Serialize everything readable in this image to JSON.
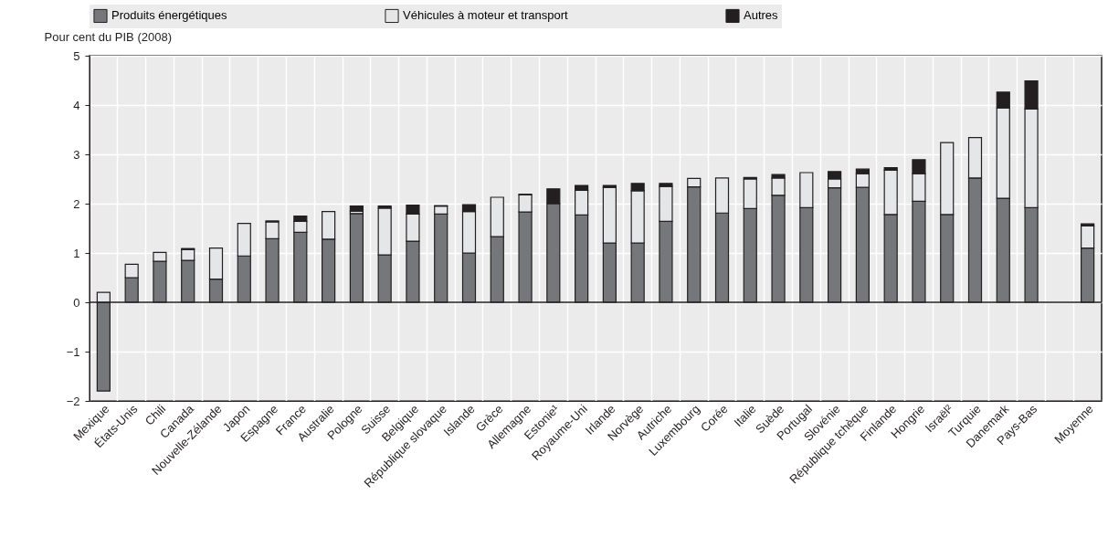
{
  "chart_data": {
    "type": "bar",
    "stacked": true,
    "ylabel": "Pour cent du PIB (2008)",
    "categories": [
      "Mexique",
      "États-Unis",
      "Chili",
      "Canada",
      "Nouvelle-Zélande",
      "Japon",
      "Espagne",
      "France",
      "Australie",
      "Pologne",
      "Suisse",
      "Belgique",
      "République slovaque",
      "Islande",
      "Grèce",
      "Allemagne",
      "Estonie¹",
      "Royaume-Uni",
      "Irlande",
      "Norvège",
      "Autriche",
      "Luxembourg",
      "Corée",
      "Italie",
      "Suède",
      "Portugal",
      "Slovénie",
      "République tchèque",
      "Finlande",
      "Hongrie",
      "Israël²",
      "Turquie",
      "Danemark",
      "Pays-Bas",
      null,
      "Moyenne"
    ],
    "series": [
      {
        "name": "Produits énergétiques",
        "color": "#76777b",
        "values": [
          -1.8,
          0.5,
          0.83,
          0.85,
          0.47,
          0.94,
          1.29,
          1.42,
          1.28,
          1.8,
          0.96,
          1.24,
          1.79,
          1.0,
          1.33,
          1.83,
          2.0,
          1.77,
          1.2,
          1.2,
          1.64,
          2.34,
          1.81,
          1.9,
          2.17,
          1.92,
          2.32,
          2.33,
          1.78,
          2.05,
          1.78,
          2.52,
          2.11,
          1.92,
          null,
          1.1
        ]
      },
      {
        "name": "Véhicules à moteur et transport",
        "color": "#e5e6e8",
        "values": [
          0.2,
          0.27,
          0.18,
          0.22,
          0.63,
          0.66,
          0.34,
          0.22,
          0.56,
          0.05,
          0.95,
          0.55,
          0.16,
          0.84,
          0.8,
          0.35,
          0.0,
          0.5,
          1.13,
          1.06,
          0.71,
          0.17,
          0.71,
          0.6,
          0.35,
          0.71,
          0.18,
          0.28,
          0.9,
          0.56,
          1.46,
          0.82,
          1.83,
          2.0,
          null,
          0.45
        ]
      },
      {
        "name": "Autres",
        "color": "#231f20",
        "values": [
          0.0,
          0.0,
          0.0,
          0.02,
          0.0,
          0.0,
          0.02,
          0.11,
          0.0,
          0.1,
          0.04,
          0.18,
          0.01,
          0.14,
          0.0,
          0.01,
          0.3,
          0.1,
          0.04,
          0.15,
          0.06,
          0.0,
          0.0,
          0.03,
          0.07,
          0.0,
          0.15,
          0.09,
          0.05,
          0.28,
          0.0,
          0.0,
          0.32,
          0.57,
          null,
          0.04
        ]
      }
    ],
    "ylim": [
      -2,
      5
    ],
    "yticks": [
      -2,
      -1,
      0,
      1,
      2,
      3,
      4,
      5
    ],
    "grid": true,
    "legend": "top"
  }
}
